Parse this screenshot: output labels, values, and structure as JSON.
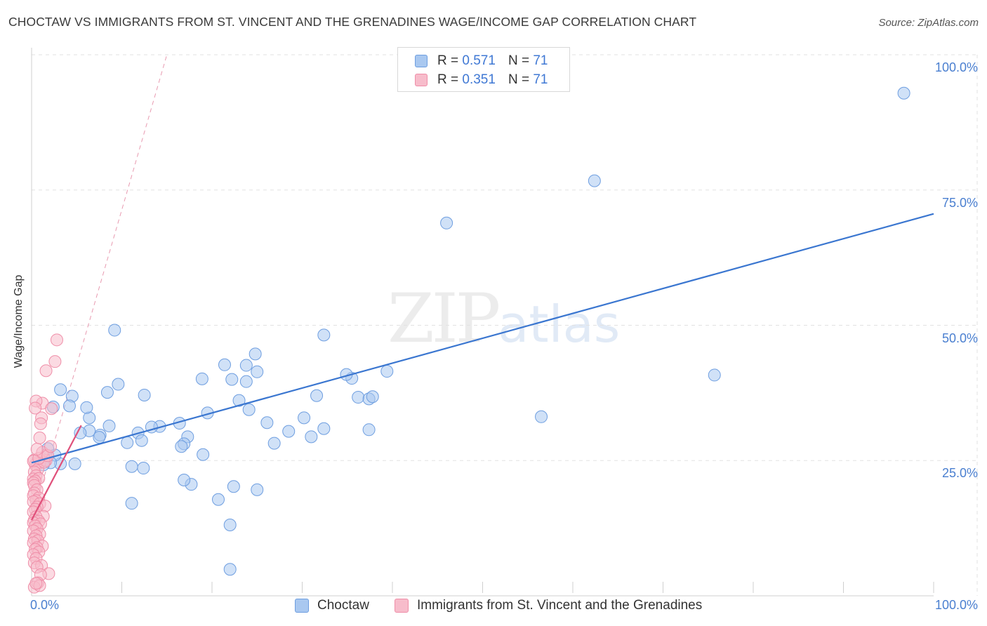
{
  "title": "CHOCTAW VS IMMIGRANTS FROM ST. VINCENT AND THE GRENADINES WAGE/INCOME GAP CORRELATION CHART",
  "source": "Source: ZipAtlas.com",
  "watermark": {
    "zip": "ZIP",
    "atlas": "atlas"
  },
  "legend": {
    "r_label": "R =",
    "n_label": "N =",
    "rows": [
      {
        "r": "0.571",
        "n": "71",
        "color": "#a9c8f0",
        "stroke": "#6e9ee0"
      },
      {
        "r": "0.351",
        "n": "71",
        "color": "#f7bccb",
        "stroke": "#ef8ea8"
      }
    ]
  },
  "bottom_legend": [
    {
      "label": "Choctaw",
      "color": "#a9c8f0",
      "stroke": "#6e9ee0"
    },
    {
      "label": "Immigrants from St. Vincent and the Grenadines",
      "color": "#f7bccb",
      "stroke": "#ef8ea8"
    }
  ],
  "chart_data": {
    "type": "scatter",
    "title": "CHOCTAW VS IMMIGRANTS FROM ST. VINCENT AND THE GRENADINES WAGE/INCOME GAP CORRELATION CHART",
    "xlabel": "",
    "ylabel": "Wage/Income Gap",
    "xlim": [
      0,
      100
    ],
    "ylim": [
      0,
      100
    ],
    "x_tick_labels": [
      "0.0%",
      "100.0%"
    ],
    "y_tick_labels": [
      "25.0%",
      "50.0%",
      "75.0%",
      "100.0%"
    ],
    "y_ticks": [
      25,
      50,
      75,
      100
    ],
    "grid": true,
    "series": [
      {
        "name": "Choctaw",
        "color": "#6e9ee0",
        "fill": "#a9c8f0",
        "trend": {
          "x": [
            0,
            100
          ],
          "y": [
            24.6,
            70.6
          ],
          "color": "#3a76d0"
        },
        "points": [
          [
            96.7,
            92.9
          ],
          [
            75.7,
            40.8
          ],
          [
            62.4,
            76.7
          ],
          [
            56.5,
            33.1
          ],
          [
            46.0,
            68.9
          ],
          [
            37.4,
            30.7
          ],
          [
            39.4,
            41.5
          ],
          [
            35.5,
            40.2
          ],
          [
            34.9,
            40.9
          ],
          [
            32.4,
            48.2
          ],
          [
            36.2,
            36.7
          ],
          [
            37.4,
            36.4
          ],
          [
            37.8,
            36.8
          ],
          [
            31.6,
            37.0
          ],
          [
            31.0,
            29.4
          ],
          [
            30.2,
            32.9
          ],
          [
            32.4,
            30.9
          ],
          [
            28.5,
            30.4
          ],
          [
            26.9,
            28.2
          ],
          [
            26.1,
            32.0
          ],
          [
            24.8,
            44.7
          ],
          [
            25.0,
            41.4
          ],
          [
            23.8,
            42.6
          ],
          [
            24.1,
            34.4
          ],
          [
            23.8,
            39.6
          ],
          [
            21.4,
            42.7
          ],
          [
            22.2,
            40.0
          ],
          [
            23.0,
            36.1
          ],
          [
            25.0,
            19.6
          ],
          [
            22.4,
            20.2
          ],
          [
            20.7,
            17.8
          ],
          [
            22.0,
            13.1
          ],
          [
            22.0,
            4.9
          ],
          [
            19.5,
            33.8
          ],
          [
            19.0,
            26.1
          ],
          [
            17.7,
            20.6
          ],
          [
            18.9,
            40.1
          ],
          [
            17.3,
            29.4
          ],
          [
            16.9,
            21.4
          ],
          [
            16.9,
            28.1
          ],
          [
            16.6,
            27.6
          ],
          [
            16.4,
            31.9
          ],
          [
            14.2,
            31.3
          ],
          [
            13.3,
            31.2
          ],
          [
            11.8,
            30.1
          ],
          [
            12.5,
            37.1
          ],
          [
            10.6,
            28.3
          ],
          [
            9.6,
            39.1
          ],
          [
            9.2,
            49.1
          ],
          [
            8.4,
            37.6
          ],
          [
            7.6,
            29.7
          ],
          [
            7.5,
            29.3
          ],
          [
            6.4,
            30.5
          ],
          [
            5.4,
            30.1
          ],
          [
            4.8,
            24.4
          ],
          [
            3.2,
            24.4
          ],
          [
            2.6,
            26.0
          ],
          [
            2.1,
            24.6
          ],
          [
            1.8,
            27.2
          ],
          [
            1.3,
            24.2
          ],
          [
            11.1,
            17.1
          ],
          [
            12.4,
            23.6
          ],
          [
            11.1,
            23.9
          ],
          [
            12.2,
            28.7
          ],
          [
            8.6,
            31.4
          ],
          [
            6.4,
            32.9
          ],
          [
            6.1,
            34.8
          ],
          [
            4.5,
            36.9
          ],
          [
            4.2,
            35.1
          ],
          [
            3.2,
            38.1
          ],
          [
            2.4,
            34.9
          ]
        ]
      },
      {
        "name": "Immigrants from St. Vincent and the Grenadines",
        "color": "#ef8ea8",
        "fill": "#f7bccb",
        "trend": {
          "x": [
            0,
            5.5
          ],
          "y": [
            14.0,
            31.5
          ],
          "color": "#e0507a"
        },
        "trend_extended": {
          "x": [
            0,
            15
          ],
          "y": [
            14.0,
            100.0
          ],
          "color": "#e89ab0"
        },
        "points": [
          [
            2.8,
            47.3
          ],
          [
            2.6,
            43.3
          ],
          [
            1.6,
            41.6
          ],
          [
            1.2,
            35.6
          ],
          [
            0.5,
            36.0
          ],
          [
            2.2,
            34.6
          ],
          [
            1.1,
            32.9
          ],
          [
            1.0,
            31.8
          ],
          [
            0.4,
            34.7
          ],
          [
            1.6,
            26.0
          ],
          [
            0.9,
            24.6
          ],
          [
            0.6,
            24.6
          ],
          [
            0.4,
            24.2
          ],
          [
            0.3,
            25.1
          ],
          [
            0.2,
            24.9
          ],
          [
            0.7,
            23.4
          ],
          [
            0.3,
            22.9
          ],
          [
            0.5,
            22.2
          ],
          [
            0.2,
            21.6
          ],
          [
            0.8,
            21.7
          ],
          [
            0.4,
            21.2
          ],
          [
            0.2,
            20.9
          ],
          [
            0.3,
            20.4
          ],
          [
            0.6,
            19.6
          ],
          [
            0.3,
            19.0
          ],
          [
            0.2,
            18.5
          ],
          [
            0.8,
            18.1
          ],
          [
            0.5,
            17.6
          ],
          [
            0.2,
            17.4
          ],
          [
            0.9,
            17.0
          ],
          [
            1.5,
            16.6
          ],
          [
            0.6,
            16.4
          ],
          [
            0.4,
            16.0
          ],
          [
            0.2,
            15.5
          ],
          [
            1.3,
            14.7
          ],
          [
            0.5,
            14.6
          ],
          [
            0.3,
            14.0
          ],
          [
            0.8,
            13.8
          ],
          [
            0.2,
            13.5
          ],
          [
            1.0,
            13.3
          ],
          [
            0.4,
            12.9
          ],
          [
            0.6,
            12.4
          ],
          [
            0.2,
            12.0
          ],
          [
            0.9,
            11.4
          ],
          [
            0.5,
            11.1
          ],
          [
            0.3,
            10.5
          ],
          [
            0.7,
            10.2
          ],
          [
            0.2,
            9.8
          ],
          [
            1.2,
            9.2
          ],
          [
            0.6,
            8.9
          ],
          [
            0.4,
            8.6
          ],
          [
            0.8,
            8.1
          ],
          [
            0.2,
            7.6
          ],
          [
            0.5,
            6.9
          ],
          [
            0.3,
            6.1
          ],
          [
            1.1,
            5.6
          ],
          [
            0.6,
            5.3
          ],
          [
            1.9,
            4.1
          ],
          [
            1.0,
            3.9
          ],
          [
            0.7,
            2.4
          ],
          [
            0.3,
            1.6
          ],
          [
            0.9,
            1.9
          ],
          [
            0.5,
            2.3
          ],
          [
            1.6,
            25.0
          ],
          [
            1.4,
            24.7
          ],
          [
            0.8,
            25.4
          ],
          [
            1.2,
            26.5
          ],
          [
            0.6,
            27.1
          ],
          [
            1.8,
            25.9
          ],
          [
            2.1,
            27.6
          ],
          [
            0.9,
            29.2
          ]
        ]
      }
    ]
  }
}
